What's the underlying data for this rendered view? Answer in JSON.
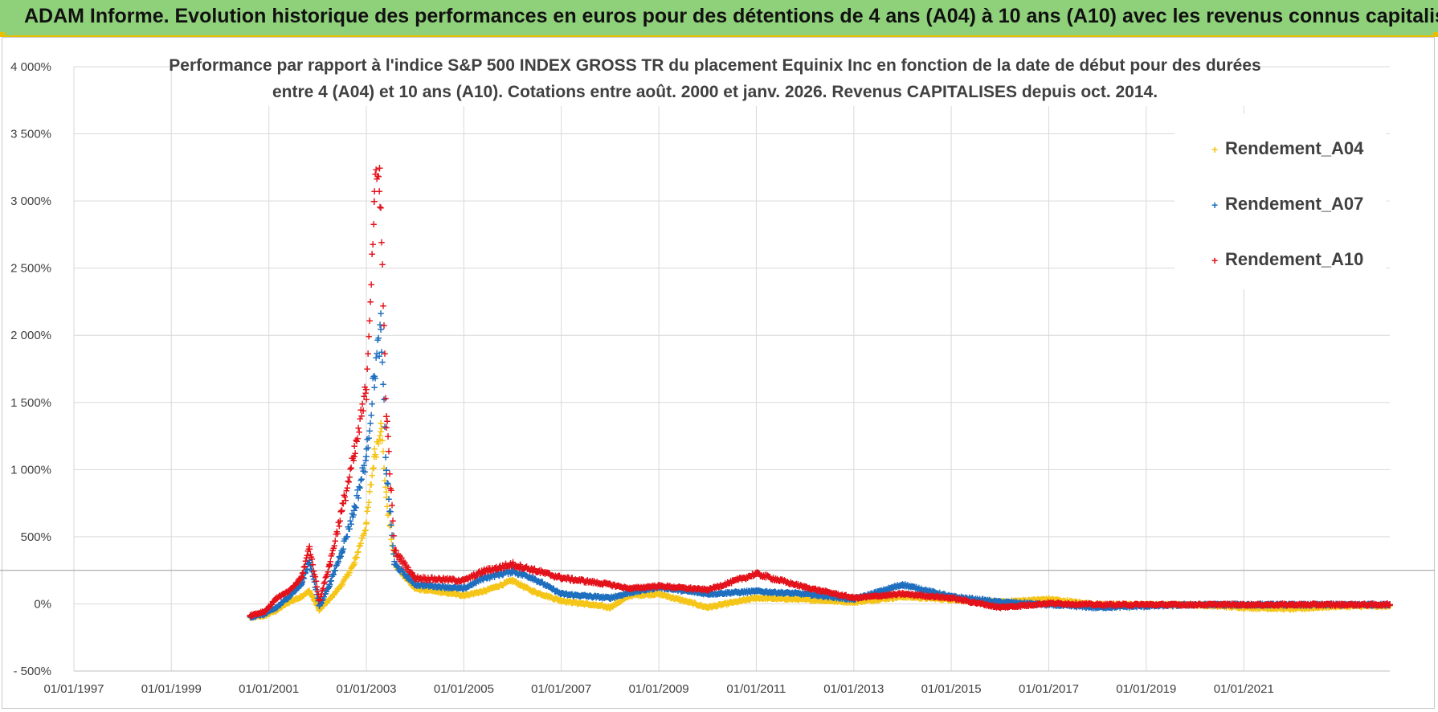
{
  "banner": {
    "title": "ADAM Informe. Evolution historique des performances en euros pour des détentions de 4 ans (A04) à 10 ans (A10) avec les revenus connus capitalisés"
  },
  "colors": {
    "banner_bg": "#8fd07a",
    "banner_border": "#e8c000",
    "A04": "#f5c518",
    "A07": "#1f6fbf",
    "A10": "#e3121b"
  },
  "chart_data": {
    "type": "scatter",
    "title_lines": [
      "Performance par rapport à l'indice S&P 500 INDEX GROSS TR  du placement Equinix Inc en fonction de la date de début pour des durées",
      "entre 4 (A04) et 10 ans (A10).  Cotations entre août. 2000 et janv. 2026. Revenus CAPITALISES depuis oct. 2014."
    ],
    "x_axis": {
      "type": "date",
      "range": [
        "1997-01-01",
        "2023-12-31"
      ],
      "tick_labels": [
        "01/01/1997",
        "01/01/1999",
        "01/01/2001",
        "01/01/2003",
        "01/01/2005",
        "01/01/2007",
        "01/01/2009",
        "01/01/2011",
        "01/01/2013",
        "01/01/2015",
        "01/01/2017",
        "01/01/2019",
        "01/01/2021"
      ]
    },
    "y_axis": {
      "unit": "%",
      "range": [
        -500,
        4000
      ],
      "ticks": [
        -500,
        0,
        500,
        1000,
        1500,
        2000,
        2500,
        3000,
        3500,
        4000
      ],
      "tick_labels": [
        "- 500%",
        "0%",
        "500%",
        "1 000%",
        "1 500%",
        "2 000%",
        "2 500%",
        "3 000%",
        "3 500%",
        "4 000%"
      ]
    },
    "grid": true,
    "reference_line_y": 250,
    "legend": {
      "position": "top-right"
    },
    "series": [
      {
        "name": "Rendement_A04",
        "color": "#f5c518",
        "marker": "+",
        "points": [
          [
            "2000-08-15",
            -95
          ],
          [
            "2000-12-01",
            -80
          ],
          [
            "2001-03-01",
            -40
          ],
          [
            "2001-06-01",
            20
          ],
          [
            "2001-09-01",
            60
          ],
          [
            "2001-11-01",
            100
          ],
          [
            "2002-01-15",
            -40
          ],
          [
            "2002-04-01",
            40
          ],
          [
            "2002-07-01",
            150
          ],
          [
            "2002-10-01",
            300
          ],
          [
            "2003-01-01",
            600
          ],
          [
            "2003-03-01",
            1100
          ],
          [
            "2003-04-20",
            1350
          ],
          [
            "2003-06-01",
            800
          ],
          [
            "2003-08-01",
            300
          ],
          [
            "2004-01-01",
            120
          ],
          [
            "2005-01-01",
            70
          ],
          [
            "2005-06-01",
            100
          ],
          [
            "2006-01-01",
            180
          ],
          [
            "2006-06-01",
            100
          ],
          [
            "2007-01-01",
            30
          ],
          [
            "2008-01-01",
            -20
          ],
          [
            "2008-06-01",
            70
          ],
          [
            "2009-01-01",
            80
          ],
          [
            "2010-01-01",
            -20
          ],
          [
            "2011-01-01",
            50
          ],
          [
            "2012-01-01",
            40
          ],
          [
            "2013-01-01",
            20
          ],
          [
            "2014-01-01",
            60
          ],
          [
            "2015-01-01",
            40
          ],
          [
            "2016-01-01",
            20
          ],
          [
            "2017-01-01",
            40
          ],
          [
            "2018-01-01",
            0
          ],
          [
            "2019-01-01",
            0
          ],
          [
            "2020-01-01",
            0
          ],
          [
            "2021-01-01",
            -20
          ],
          [
            "2022-01-01",
            -30
          ],
          [
            "2023-01-01",
            -10
          ],
          [
            "2023-12-31",
            -10
          ]
        ]
      },
      {
        "name": "Rendement_A07",
        "color": "#1f6fbf",
        "marker": "+",
        "points": [
          [
            "2000-08-15",
            -90
          ],
          [
            "2000-12-01",
            -70
          ],
          [
            "2001-03-01",
            -20
          ],
          [
            "2001-06-01",
            60
          ],
          [
            "2001-09-01",
            150
          ],
          [
            "2001-11-01",
            330
          ],
          [
            "2002-01-15",
            -10
          ],
          [
            "2002-04-01",
            150
          ],
          [
            "2002-07-01",
            400
          ],
          [
            "2002-10-01",
            700
          ],
          [
            "2003-01-01",
            1100
          ],
          [
            "2003-03-01",
            1700
          ],
          [
            "2003-04-20",
            2050
          ],
          [
            "2003-06-01",
            1000
          ],
          [
            "2003-08-01",
            300
          ],
          [
            "2004-01-01",
            150
          ],
          [
            "2005-01-01",
            120
          ],
          [
            "2005-06-01",
            200
          ],
          [
            "2006-01-01",
            250
          ],
          [
            "2006-06-01",
            200
          ],
          [
            "2007-01-01",
            80
          ],
          [
            "2008-01-01",
            50
          ],
          [
            "2008-06-01",
            90
          ],
          [
            "2009-01-01",
            130
          ],
          [
            "2010-01-01",
            80
          ],
          [
            "2011-01-01",
            100
          ],
          [
            "2012-01-01",
            80
          ],
          [
            "2013-01-01",
            40
          ],
          [
            "2014-01-01",
            150
          ],
          [
            "2015-01-01",
            60
          ],
          [
            "2016-01-01",
            20
          ],
          [
            "2017-01-01",
            0
          ],
          [
            "2018-01-01",
            -20
          ],
          [
            "2019-01-01",
            -10
          ],
          [
            "2020-01-01",
            0
          ],
          [
            "2021-01-01",
            0
          ],
          [
            "2022-01-01",
            0
          ],
          [
            "2023-01-01",
            0
          ],
          [
            "2023-12-31",
            0
          ]
        ]
      },
      {
        "name": "Rendement_A10",
        "color": "#e3121b",
        "marker": "+",
        "points": [
          [
            "2000-08-15",
            -80
          ],
          [
            "2000-12-01",
            -50
          ],
          [
            "2001-03-01",
            50
          ],
          [
            "2001-06-01",
            100
          ],
          [
            "2001-09-01",
            200
          ],
          [
            "2001-11-01",
            430
          ],
          [
            "2002-01-15",
            30
          ],
          [
            "2002-04-01",
            300
          ],
          [
            "2002-07-01",
            700
          ],
          [
            "2002-10-01",
            1100
          ],
          [
            "2003-01-01",
            1600
          ],
          [
            "2003-03-01",
            3000
          ],
          [
            "2003-04-10",
            3250
          ],
          [
            "2003-06-01",
            1400
          ],
          [
            "2003-08-01",
            400
          ],
          [
            "2004-01-01",
            200
          ],
          [
            "2005-01-01",
            180
          ],
          [
            "2005-06-01",
            250
          ],
          [
            "2006-01-01",
            300
          ],
          [
            "2006-06-01",
            260
          ],
          [
            "2007-01-01",
            200
          ],
          [
            "2008-01-01",
            150
          ],
          [
            "2008-06-01",
            120
          ],
          [
            "2009-01-01",
            140
          ],
          [
            "2010-01-01",
            110
          ],
          [
            "2011-01-01",
            230
          ],
          [
            "2012-01-01",
            130
          ],
          [
            "2013-01-01",
            50
          ],
          [
            "2014-01-01",
            80
          ],
          [
            "2015-01-01",
            50
          ],
          [
            "2016-01-01",
            -20
          ],
          [
            "2017-01-01",
            10
          ],
          [
            "2018-01-01",
            0
          ],
          [
            "2019-01-01",
            0
          ],
          [
            "2020-01-01",
            0
          ],
          [
            "2021-01-01",
            0
          ],
          [
            "2022-01-01",
            0
          ],
          [
            "2023-01-01",
            0
          ],
          [
            "2023-12-31",
            0
          ]
        ]
      }
    ]
  }
}
